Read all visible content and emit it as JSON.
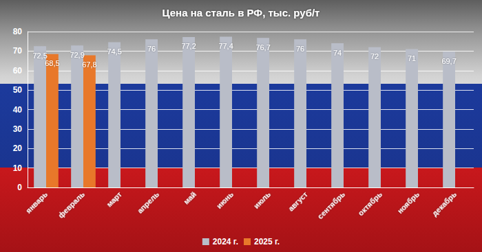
{
  "chart_data": {
    "type": "bar",
    "title": "Цена на сталь в РФ, тыс. руб/т",
    "categories": [
      "январь",
      "февраль",
      "март",
      "апрель",
      "май",
      "июнь",
      "июль",
      "август",
      "сентябрь",
      "октябрь",
      "ноябрь",
      "декабрь"
    ],
    "series": [
      {
        "name": "2024 г.",
        "color": "#b9bdc8",
        "values": [
          72.5,
          72.9,
          74.5,
          76,
          77.2,
          77.4,
          76.7,
          76,
          74,
          72,
          71,
          69.7
        ],
        "value_labels": [
          "72,5",
          "72,9",
          "74,5",
          "76",
          "77,2",
          "77,4",
          "76,7",
          "76",
          "74",
          "72",
          "71",
          "69,7"
        ]
      },
      {
        "name": "2025 г.",
        "color": "#e8782a",
        "values": [
          68.5,
          67.8,
          null,
          null,
          null,
          null,
          null,
          null,
          null,
          null,
          null,
          null
        ],
        "value_labels": [
          "68,5",
          "67,8",
          null,
          null,
          null,
          null,
          null,
          null,
          null,
          null,
          null,
          null
        ]
      }
    ],
    "ylim": [
      0,
      80
    ],
    "yticks": [
      0,
      10,
      20,
      30,
      40,
      50,
      60,
      70,
      80
    ],
    "grid": true,
    "legend": "bottom",
    "data_labels": true
  }
}
